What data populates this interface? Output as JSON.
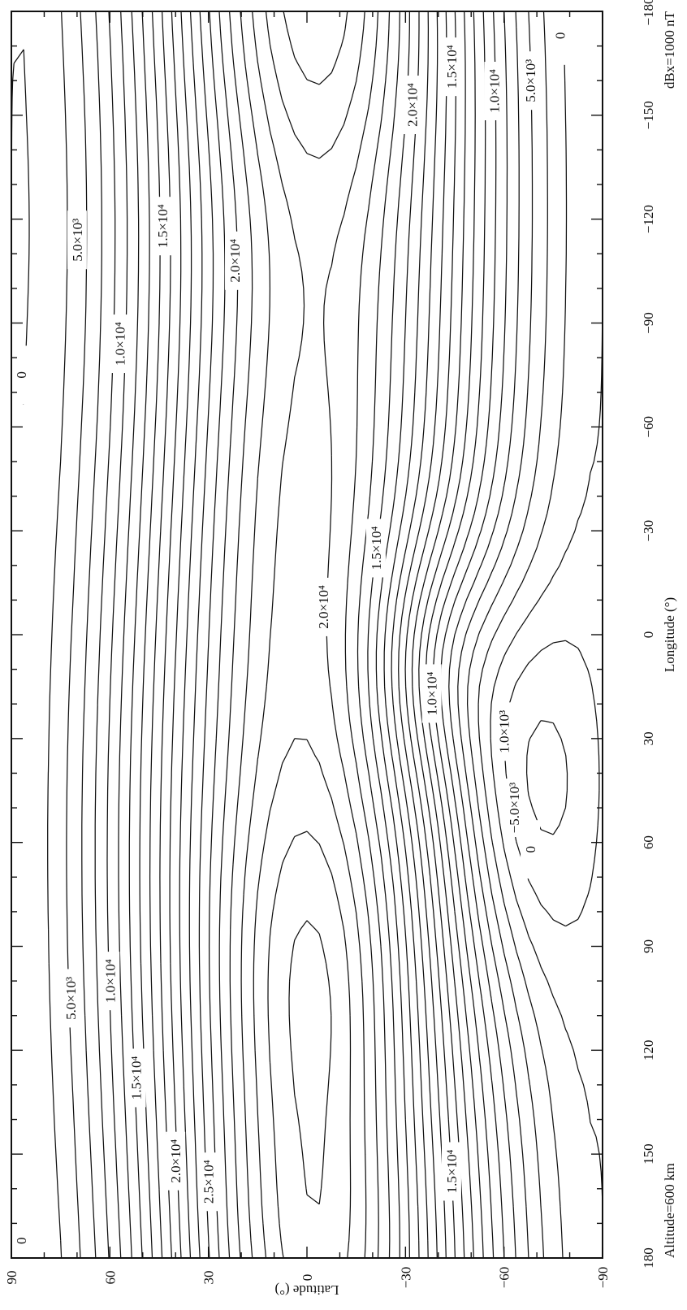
{
  "chart_data": {
    "type": "contour",
    "orientation": "rotated 90° clockwise (longitude runs top→bottom, latitude runs left→right)",
    "x_axis": {
      "title": "Longitude (°)",
      "range": [
        -180,
        180
      ],
      "ticks": [
        -180,
        -150,
        -120,
        -90,
        -60,
        -30,
        0,
        30,
        60,
        90,
        120,
        150,
        180
      ],
      "tick_labels": [
        "−180",
        "−150",
        "−120",
        "−90",
        "−60",
        "−30",
        "0",
        "30",
        "60",
        "90",
        "120",
        "150",
        "180"
      ]
    },
    "y_axis": {
      "title": "Latitude (°)",
      "range": [
        -90,
        90
      ],
      "ticks": [
        90,
        60,
        30,
        0,
        -30,
        -60,
        -90
      ],
      "tick_labels": [
        "90",
        "60",
        "30",
        "0",
        "−30",
        "−60",
        "−90"
      ]
    },
    "annotations": {
      "altitude": "Altitude=600 km",
      "interval": "dBx=1000 nT"
    },
    "contour_interval": 1000,
    "units": "nT",
    "grid": false,
    "contour_labels": [
      {
        "text": "0",
        "lon": 175,
        "lat": 87
      },
      {
        "text": "5.0×10³",
        "lon": 105,
        "lat": 72
      },
      {
        "text": "1.0×10⁴",
        "lon": 100,
        "lat": 60
      },
      {
        "text": "1.5×10⁴",
        "lon": 128,
        "lat": 52
      },
      {
        "text": "2.0×10⁴",
        "lon": 152,
        "lat": 40
      },
      {
        "text": "2.5×10⁴",
        "lon": 158,
        "lat": 30
      },
      {
        "text": "1.5×10⁴",
        "lon": 155,
        "lat": -44
      },
      {
        "text": "−5.0×10³",
        "lon": 50,
        "lat": -63
      },
      {
        "text": "0",
        "lon": 62,
        "lat": -68
      },
      {
        "text": "1.0×10³",
        "lon": 28,
        "lat": -60
      },
      {
        "text": "1.0×10⁴",
        "lon": 17,
        "lat": -38
      },
      {
        "text": "2.0×10⁴",
        "lon": -8,
        "lat": -5
      },
      {
        "text": "1.5×10⁴",
        "lon": -25,
        "lat": -21
      },
      {
        "text": "0",
        "lon": -75,
        "lat": 87
      },
      {
        "text": "1.0×10⁴",
        "lon": -84,
        "lat": 57
      },
      {
        "text": "5.0×10³",
        "lon": -114,
        "lat": 70
      },
      {
        "text": "1.5×10⁴",
        "lon": -118,
        "lat": 44
      },
      {
        "text": "2.0×10⁴",
        "lon": -108,
        "lat": 22
      },
      {
        "text": "2.0×10⁴",
        "lon": -153,
        "lat": -32
      },
      {
        "text": "1.5×10⁴",
        "lon": -164,
        "lat": -44
      },
      {
        "text": "1.0×10⁴",
        "lon": -157,
        "lat": -57
      },
      {
        "text": "5.0×10³",
        "lon": -160,
        "lat": -68
      },
      {
        "text": "0",
        "lon": -173,
        "lat": -77
      }
    ],
    "features": [
      {
        "kind": "maximum",
        "lon": 100,
        "lat": -5
      },
      {
        "kind": "maximum",
        "lon": -180,
        "lat": -5
      },
      {
        "kind": "minimum",
        "lon": 5,
        "lat": -40
      },
      {
        "kind": "minimum",
        "lon": 40,
        "lat": -60
      }
    ]
  }
}
